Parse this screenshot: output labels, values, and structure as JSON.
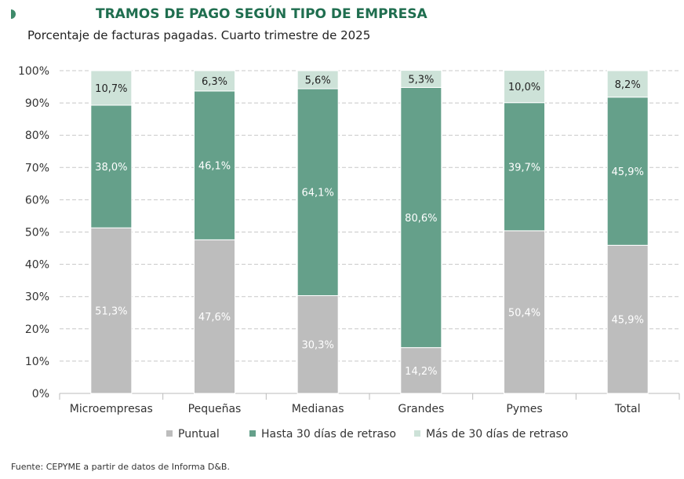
{
  "chart_data": {
    "type": "bar",
    "stacked": true,
    "title": "TRAMOS DE PAGO SEGÚN TIPO DE EMPRESA",
    "subtitle": "Porcentaje de facturas pagadas. Cuarto trimestre de 2025",
    "categories": [
      "Microempresas",
      "Pequeñas",
      "Medianas",
      "Grandes",
      "Pymes",
      "Total"
    ],
    "series": [
      {
        "name": "Puntual",
        "color": "#bdbdbd",
        "values": [
          51.3,
          47.6,
          30.3,
          14.2,
          50.4,
          45.9
        ],
        "labels": [
          "51,3%",
          "47,6%",
          "30,3%",
          "14,2%",
          "50,4%",
          "45,9%"
        ]
      },
      {
        "name": "Hasta 30 días de retraso",
        "color": "#65a08a",
        "values": [
          38.0,
          46.1,
          64.1,
          80.6,
          39.7,
          45.9
        ],
        "labels": [
          "38,0%",
          "46,1%",
          "64,1%",
          "80,6%",
          "39,7%",
          "45,9%"
        ]
      },
      {
        "name": "Más de 30 días de retraso",
        "color": "#cde2d8",
        "values": [
          10.7,
          6.3,
          5.6,
          5.3,
          10.0,
          8.2
        ],
        "labels": [
          "10,7%",
          "6,3%",
          "5,6%",
          "5,3%",
          "10,0%",
          "8,2%"
        ]
      }
    ],
    "ylim": [
      0,
      100
    ],
    "yticks": [
      "0%",
      "10%",
      "20%",
      "30%",
      "40%",
      "50%",
      "60%",
      "70%",
      "80%",
      "90%",
      "100%"
    ],
    "grid": true,
    "legend": "bottom"
  },
  "source": "Fuente: CEPYME a partir de datos de Informa D&B."
}
